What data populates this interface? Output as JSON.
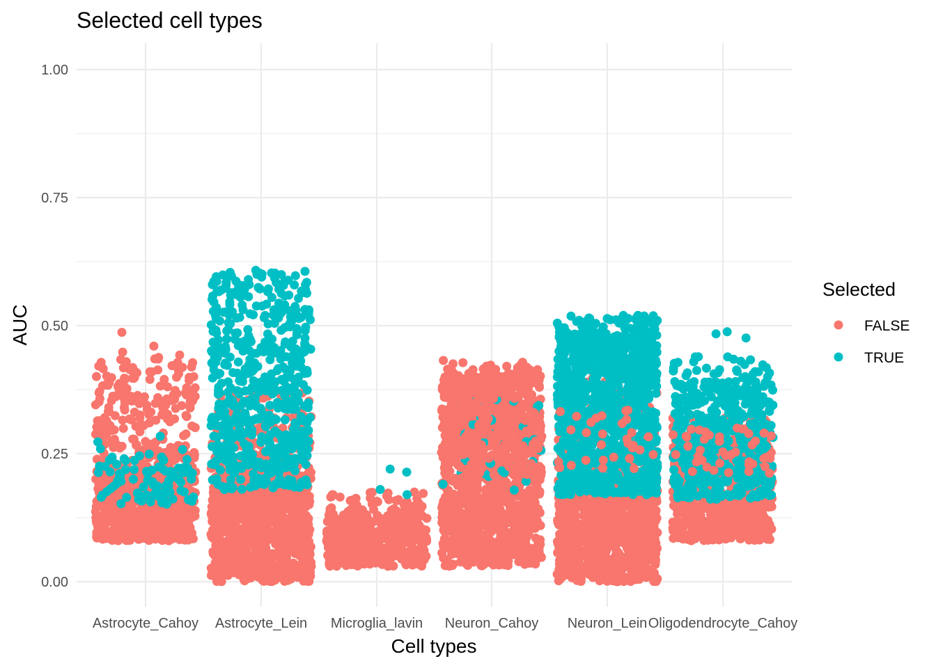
{
  "chart_data": {
    "type": "scatter",
    "title": "Selected cell types",
    "xlabel": "Cell types",
    "ylabel": "AUC",
    "categories": [
      "Astrocyte_Cahoy",
      "Astrocyte_Lein",
      "Microglia_lavin",
      "Neuron_Cahoy",
      "Neuron_Lein",
      "Oligodendrocyte_Cahoy"
    ],
    "ylim": [
      -0.05,
      1.05
    ],
    "yticks": [
      "0.00",
      "0.25",
      "0.50",
      "0.75",
      "1.00"
    ],
    "ytick_values": [
      0,
      0.25,
      0.5,
      0.75,
      1.0
    ],
    "grid": true,
    "legend": {
      "title": "Selected",
      "position": "right"
    },
    "series": [
      {
        "name": "FALSE",
        "color": "#F8766D",
        "groups": [
          {
            "category": "Astrocyte_Cahoy",
            "core_range": [
              0.08,
              0.2
            ],
            "spread_range": [
              0.2,
              0.45
            ],
            "outliers": [
              0.46,
              0.487
            ]
          },
          {
            "category": "Astrocyte_Lein",
            "core_range": [
              0.0,
              0.2
            ],
            "spread_range": [
              0.2,
              0.37
            ],
            "outliers": []
          },
          {
            "category": "Microglia_lavin",
            "core_range": [
              0.03,
              0.13
            ],
            "spread_range": [
              0.13,
              0.18
            ],
            "outliers": []
          },
          {
            "category": "Neuron_Cahoy",
            "core_range": [
              0.03,
              0.4
            ],
            "spread_range": [
              0.4,
              0.43
            ],
            "outliers": [
              0.432
            ]
          },
          {
            "category": "Neuron_Lein",
            "core_range": [
              0.0,
              0.2
            ],
            "spread_range": [
              0.2,
              0.4
            ],
            "outliers": []
          },
          {
            "category": "Oligodendrocyte_Cahoy",
            "core_range": [
              0.08,
              0.25
            ],
            "spread_range": [
              0.25,
              0.32
            ],
            "outliers": []
          }
        ]
      },
      {
        "name": "TRUE",
        "color": "#00BFC4",
        "groups": [
          {
            "category": "Astrocyte_Cahoy",
            "core_range": [
              0.15,
              0.23
            ],
            "spread_range": [
              0.23,
              0.31
            ],
            "outliers": []
          },
          {
            "category": "Astrocyte_Lein",
            "core_range": [
              0.18,
              0.58
            ],
            "spread_range": [
              0.58,
              0.61
            ],
            "outliers": [
              0.6,
              0.603,
              0.608
            ]
          },
          {
            "category": "Microglia_lavin",
            "core_range": [
              0.17,
              0.17
            ],
            "spread_range": [
              0.17,
              0.17
            ],
            "outliers": [
              0.18,
              0.214,
              0.22
            ]
          },
          {
            "category": "Neuron_Cahoy",
            "core_range": [
              0.17,
              0.36
            ],
            "spread_range": [
              0.17,
              0.36
            ],
            "outliers": []
          },
          {
            "category": "Neuron_Lein",
            "core_range": [
              0.17,
              0.48
            ],
            "spread_range": [
              0.48,
              0.52
            ],
            "outliers": [
              0.52,
              0.515,
              0.51
            ]
          },
          {
            "category": "Oligodendrocyte_Cahoy",
            "core_range": [
              0.16,
              0.39
            ],
            "spread_range": [
              0.39,
              0.44
            ],
            "outliers": [
              0.476,
              0.484,
              0.488
            ]
          }
        ]
      }
    ]
  }
}
